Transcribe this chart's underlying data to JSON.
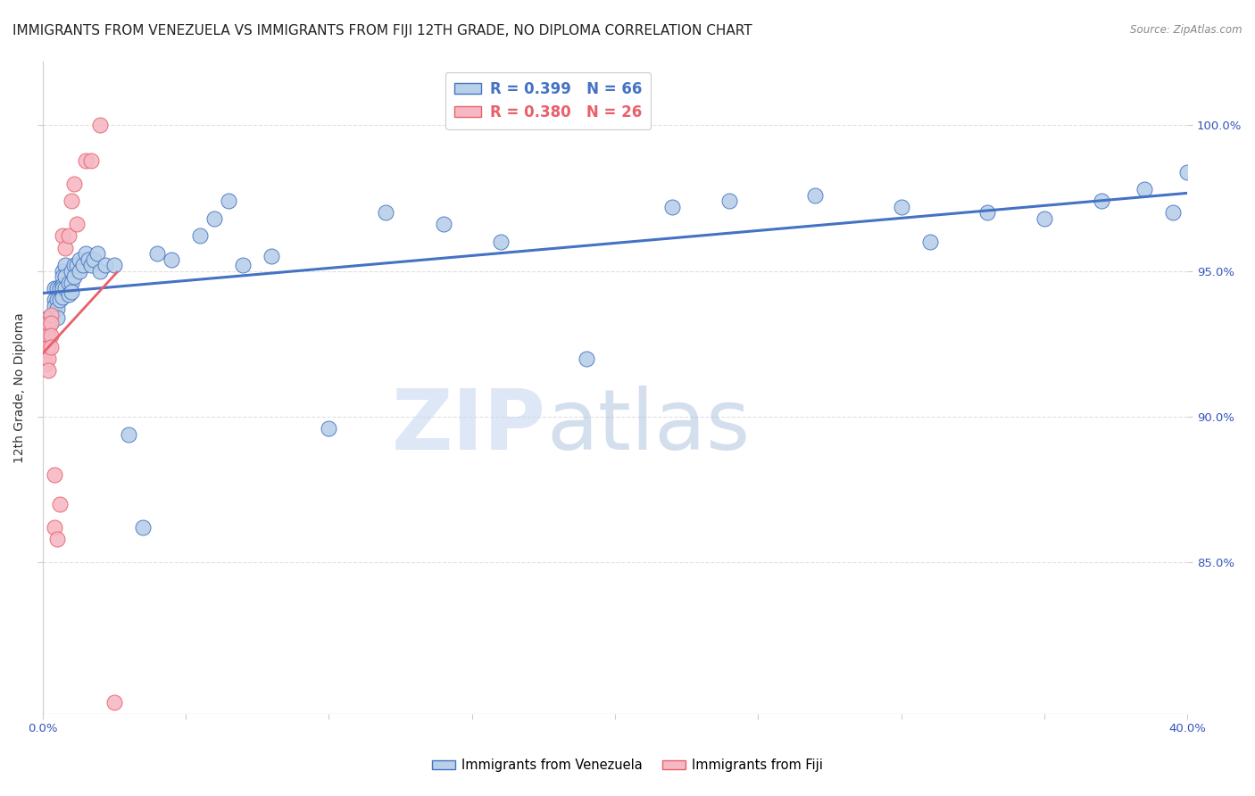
{
  "title": "IMMIGRANTS FROM VENEZUELA VS IMMIGRANTS FROM FIJI 12TH GRADE, NO DIPLOMA CORRELATION CHART",
  "source": "Source: ZipAtlas.com",
  "ylabel": "12th Grade, No Diploma",
  "legend_venezuela": "R = 0.399   N = 66",
  "legend_fiji": "R = 0.380   N = 26",
  "legend_label_venezuela": "Immigrants from Venezuela",
  "legend_label_fiji": "Immigrants from Fiji",
  "color_venezuela": "#b8d0e8",
  "color_fiji": "#f5b8c4",
  "line_color_venezuela": "#4472c4",
  "line_color_fiji": "#e8606a",
  "xlim": [
    0.0,
    0.4
  ],
  "ylim": [
    0.798,
    1.022
  ],
  "xtick_positions": [
    0.0,
    0.05,
    0.1,
    0.15,
    0.2,
    0.25,
    0.3,
    0.35,
    0.4
  ],
  "ytick_right_positions": [
    1.0,
    0.95,
    0.9,
    0.85
  ],
  "ytick_right_labels": [
    "100.0%",
    "95.0%",
    "90.0%",
    "85.0%"
  ],
  "watermark_zip": "ZIP",
  "watermark_atlas": "atlas",
  "background_color": "#ffffff",
  "grid_color": "#e0e0e0",
  "title_fontsize": 11,
  "axis_label_fontsize": 10,
  "tick_fontsize": 9.5,
  "venezuela_x": [
    0.001,
    0.002,
    0.002,
    0.003,
    0.003,
    0.004,
    0.004,
    0.004,
    0.005,
    0.005,
    0.005,
    0.005,
    0.006,
    0.006,
    0.007,
    0.007,
    0.007,
    0.007,
    0.007,
    0.008,
    0.008,
    0.008,
    0.009,
    0.009,
    0.01,
    0.01,
    0.01,
    0.011,
    0.011,
    0.012,
    0.013,
    0.013,
    0.014,
    0.015,
    0.016,
    0.017,
    0.018,
    0.019,
    0.02,
    0.022,
    0.025,
    0.03,
    0.035,
    0.04,
    0.045,
    0.055,
    0.06,
    0.065,
    0.07,
    0.08,
    0.1,
    0.12,
    0.14,
    0.16,
    0.19,
    0.22,
    0.24,
    0.27,
    0.3,
    0.31,
    0.33,
    0.35,
    0.37,
    0.385,
    0.395,
    0.4
  ],
  "venezuela_y": [
    0.929,
    0.934,
    0.93,
    0.934,
    0.932,
    0.944,
    0.94,
    0.938,
    0.944,
    0.94,
    0.937,
    0.934,
    0.944,
    0.94,
    0.95,
    0.948,
    0.945,
    0.944,
    0.941,
    0.952,
    0.948,
    0.944,
    0.946,
    0.942,
    0.95,
    0.946,
    0.943,
    0.952,
    0.948,
    0.952,
    0.954,
    0.95,
    0.952,
    0.956,
    0.954,
    0.952,
    0.954,
    0.956,
    0.95,
    0.952,
    0.952,
    0.894,
    0.862,
    0.956,
    0.954,
    0.962,
    0.968,
    0.974,
    0.952,
    0.955,
    0.896,
    0.97,
    0.966,
    0.96,
    0.92,
    0.972,
    0.974,
    0.976,
    0.972,
    0.96,
    0.97,
    0.968,
    0.974,
    0.978,
    0.97,
    0.984
  ],
  "fiji_x": [
    0.001,
    0.001,
    0.001,
    0.002,
    0.002,
    0.002,
    0.002,
    0.002,
    0.003,
    0.003,
    0.003,
    0.003,
    0.004,
    0.004,
    0.005,
    0.006,
    0.007,
    0.008,
    0.009,
    0.01,
    0.011,
    0.012,
    0.015,
    0.017,
    0.02,
    0.025
  ],
  "fiji_y": [
    0.926,
    0.922,
    0.918,
    0.932,
    0.928,
    0.924,
    0.92,
    0.916,
    0.935,
    0.932,
    0.928,
    0.924,
    0.88,
    0.862,
    0.858,
    0.87,
    0.962,
    0.958,
    0.962,
    0.974,
    0.98,
    0.966,
    0.988,
    0.988,
    1.0,
    0.802
  ]
}
